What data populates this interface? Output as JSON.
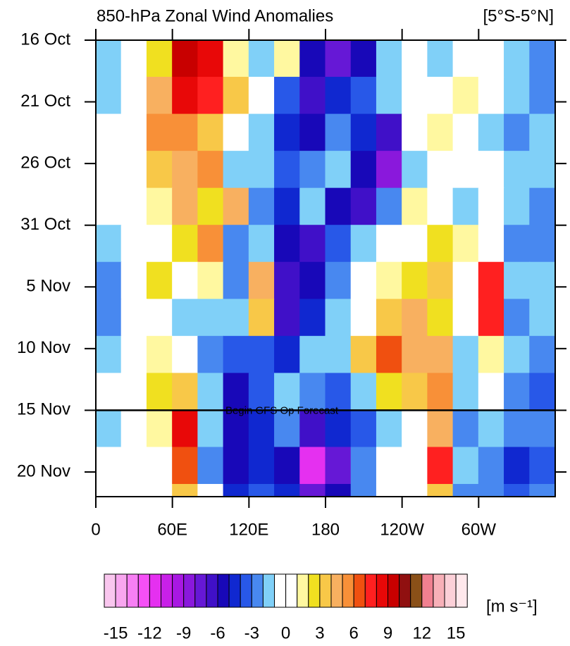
{
  "chart_data": {
    "type": "hovmoller",
    "title": "850-hPa Zonal Wind Anomalies",
    "region": "[5°S-5°N]",
    "units": "[m s⁻¹]",
    "xlim": [
      0,
      360
    ],
    "xticks": [
      0,
      {
        "value": 60,
        "label": "60E"
      },
      {
        "value": 120,
        "label": "120E"
      },
      180,
      {
        "value": 240,
        "label": "120W"
      },
      {
        "value": 300,
        "label": "60W"
      }
    ],
    "ylim": [
      37,
      0
    ],
    "yticks": [
      {
        "value": 0,
        "label": "16 Oct"
      },
      {
        "value": 5,
        "label": "21 Oct"
      },
      {
        "value": 10,
        "label": "26 Oct"
      },
      {
        "value": 15,
        "label": "31 Oct"
      },
      {
        "value": 20,
        "label": "5 Nov"
      },
      {
        "value": 25,
        "label": "10 Nov"
      },
      {
        "value": 30,
        "label": "15 Nov"
      },
      {
        "value": 35,
        "label": "20 Nov"
      }
    ],
    "annotation": {
      "text": "Begin GFS Op Forecast",
      "y": 30
    },
    "x": [
      10,
      30,
      50,
      70,
      90,
      110,
      130,
      150,
      170,
      190,
      210,
      230,
      250,
      270,
      290,
      310,
      330,
      350
    ],
    "y": [
      1.5,
      4.5,
      7.5,
      10.5,
      13.5,
      16.5,
      19.5,
      22.5,
      25.5,
      28.5,
      31.5,
      34.5,
      37.5
    ],
    "values": [
      [
        -2,
        -1,
        2,
        9,
        8,
        1,
        -2,
        1,
        -6,
        -8,
        -6,
        -2,
        -1,
        -2,
        -1,
        0,
        -2,
        -3
      ],
      [
        -2,
        -1,
        4,
        8,
        7,
        3,
        0,
        -4,
        -7,
        -5,
        -4,
        -2,
        0,
        -1,
        1,
        -1,
        -2,
        -3
      ],
      [
        -1,
        0,
        5,
        5,
        3,
        -1,
        -2,
        -5,
        -6,
        -3,
        -5,
        -7,
        0,
        1,
        0,
        -2,
        -3,
        -2
      ],
      [
        0,
        0,
        3,
        4,
        5,
        -2,
        -2,
        -4,
        -3,
        -2,
        -6,
        -9,
        -2,
        0,
        -1,
        -1,
        -2,
        -2
      ],
      [
        -1,
        0,
        1,
        4,
        2,
        4,
        -3,
        -5,
        -2,
        -6,
        -7,
        -3,
        1,
        -1,
        -2,
        0,
        -2,
        -3
      ],
      [
        -2,
        -1,
        0,
        2,
        5,
        -3,
        -2,
        -6,
        -7,
        -4,
        -2,
        0,
        0,
        2,
        1,
        -1,
        -3,
        -3
      ],
      [
        -3,
        0,
        2,
        -1,
        1,
        -3,
        4,
        -7,
        -6,
        -3,
        -1,
        1,
        2,
        3,
        -1,
        7,
        -2,
        -2
      ],
      [
        -3,
        -1,
        0,
        -2,
        -2,
        -2,
        3,
        -7,
        -5,
        -2,
        0,
        3,
        4,
        2,
        -1,
        7,
        -3,
        -2
      ],
      [
        -2,
        0,
        1,
        -1,
        -3,
        -4,
        -4,
        -5,
        -2,
        -2,
        3,
        6,
        4,
        4,
        -2,
        1,
        -2,
        -3
      ],
      [
        -1,
        -1,
        2,
        3,
        -2,
        -6,
        -4,
        -2,
        -3,
        -4,
        -2,
        2,
        3,
        5,
        -2,
        -1,
        -3,
        -4
      ],
      [
        -2,
        0,
        1,
        8,
        -2,
        -6,
        -5,
        -3,
        -7,
        -5,
        -4,
        -2,
        -1,
        4,
        -3,
        -2,
        -3,
        -3
      ],
      [
        -1,
        0,
        0,
        6,
        -3,
        -6,
        -5,
        -6,
        -12,
        -8,
        -3,
        -1,
        0,
        7,
        -2,
        -3,
        -5,
        -4
      ],
      [
        -1,
        -1,
        0,
        3,
        -1,
        -5,
        -4,
        -5,
        -8,
        -6,
        -3,
        -1,
        0,
        3,
        -3,
        -3,
        -4,
        -3
      ]
    ],
    "levels": [
      -15,
      -14,
      -13,
      -12,
      -11,
      -10,
      -9,
      -8,
      -7,
      -6,
      -5,
      -4,
      -3,
      -2,
      -1,
      0,
      1,
      2,
      3,
      4,
      5,
      6,
      7,
      8,
      9,
      10,
      11,
      12,
      13,
      14,
      15
    ],
    "colorbar_ticks": [
      -15,
      -12,
      -9,
      -6,
      -3,
      0,
      3,
      6,
      9,
      12,
      15
    ],
    "colors": [
      "#f9c6ee",
      "#f8a6ef",
      "#f77ff4",
      "#f550f6",
      "#e530f0",
      "#c820e8",
      "#a818e2",
      "#8a18dc",
      "#6618d6",
      "#4010c8",
      "#1808b8",
      "#1028d0",
      "#2858e8",
      "#4888f0",
      "#80d0f8",
      "#ffffff",
      "#ffffff",
      "#fff8a0",
      "#f0e020",
      "#f8c848",
      "#f8b060",
      "#f89038",
      "#f05010",
      "#ff2020",
      "#e80808",
      "#c80000",
      "#901010",
      "#8a5018",
      "#f08090",
      "#f8b0b8",
      "#fcd0d8",
      "#ffe8ec"
    ]
  }
}
